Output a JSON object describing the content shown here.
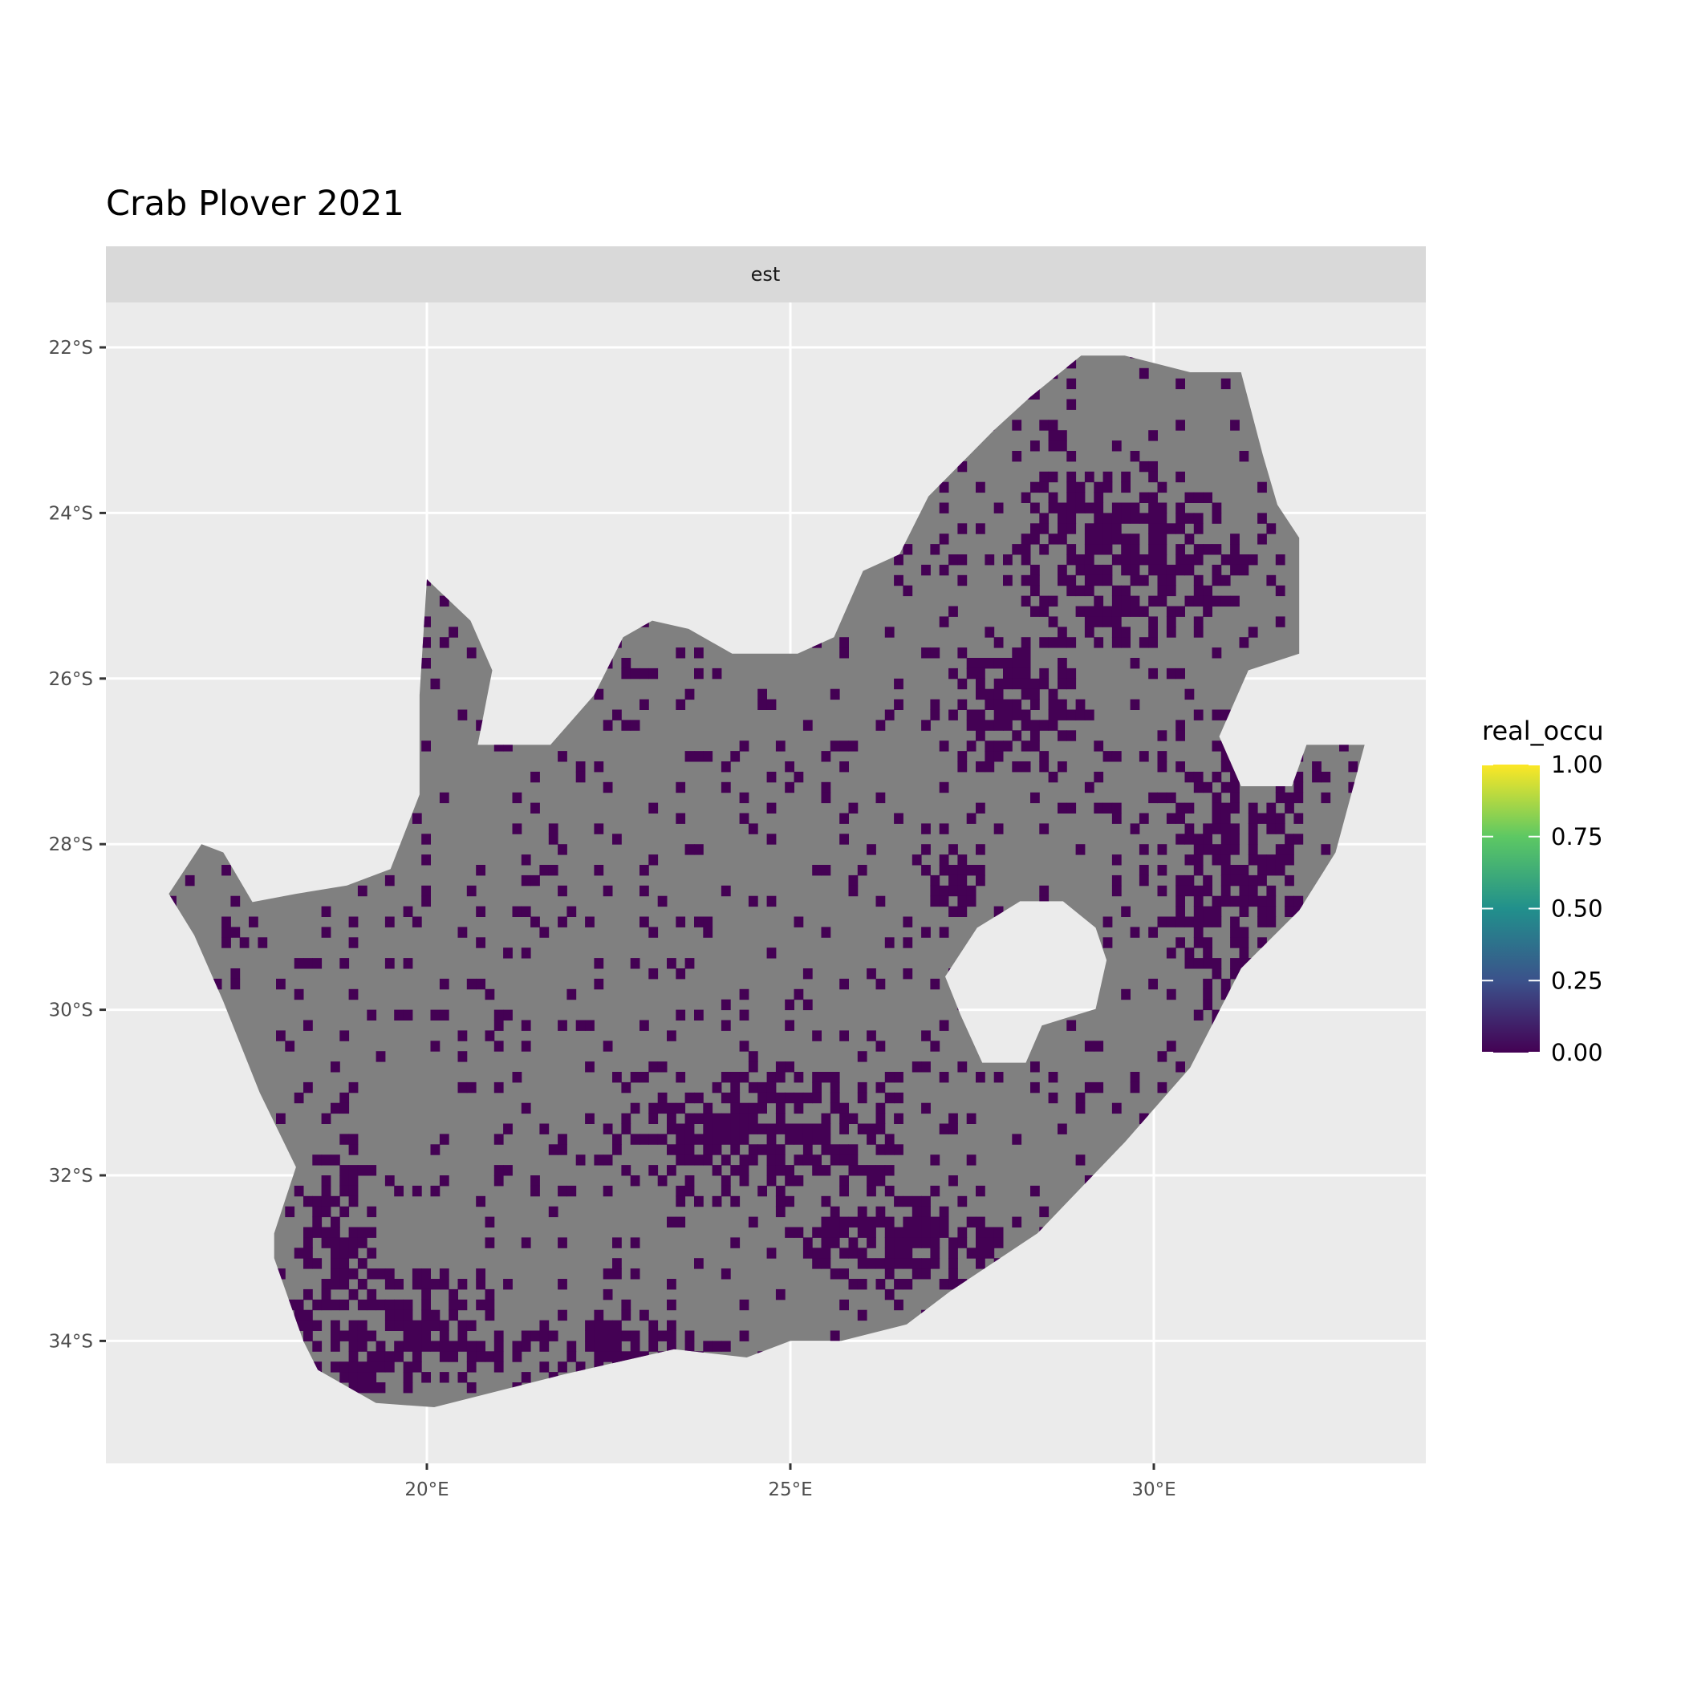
{
  "chart_data": {
    "type": "heatmap",
    "title": "Crab Plover 2021",
    "facet_label": "est",
    "xlabel": "",
    "ylabel": "",
    "x_ticks": [
      {
        "value": 20,
        "label": "20°E"
      },
      {
        "value": 25,
        "label": "25°E"
      },
      {
        "value": 30,
        "label": "30°E"
      }
    ],
    "y_ticks": [
      {
        "value": -22,
        "label": "22°S"
      },
      {
        "value": -24,
        "label": "24°S"
      },
      {
        "value": -26,
        "label": "26°S"
      },
      {
        "value": -28,
        "label": "28°S"
      },
      {
        "value": -30,
        "label": "30°S"
      },
      {
        "value": -32,
        "label": "32°S"
      },
      {
        "value": -34,
        "label": "34°S"
      }
    ],
    "xlim": [
      15.6,
      33.8
    ],
    "ylim": [
      -35.4,
      -21.6
    ],
    "grid": true,
    "legend": {
      "title": "real_occu",
      "placement": "right",
      "type": "colorbar",
      "range": [
        0,
        1
      ],
      "ticks": [
        "0.00",
        "0.25",
        "0.50",
        "0.75",
        "1.00"
      ],
      "palette": [
        "#440154",
        "#3B528B",
        "#21908C",
        "#5DC863",
        "#FDE725"
      ]
    },
    "colors": {
      "na_fill": "#808080",
      "occupancy_zero": "#440154",
      "panel_bg": "#EBEBEB",
      "strip_bg": "#D9D9D9"
    },
    "observed_values": "all mapped cells are either 0.00 (dark purple) or missing (grey)"
  }
}
